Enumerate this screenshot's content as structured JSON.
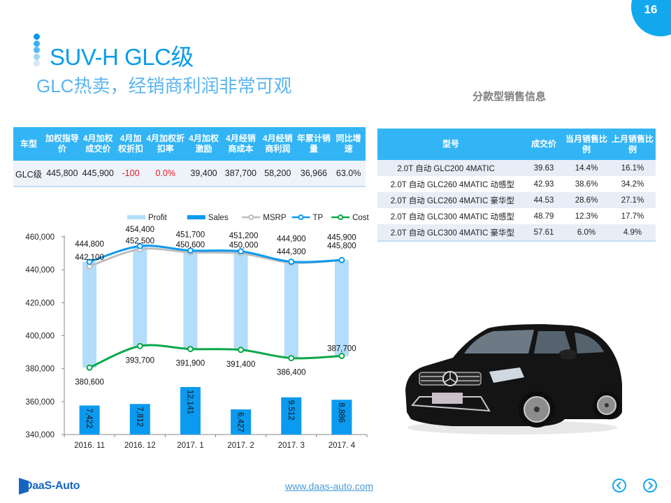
{
  "page": {
    "number": "16",
    "title": "SUV-H GLC级",
    "subtitle": "GLC热卖，经销商利润非常可观",
    "section_label": "分款型销售信息",
    "title_dots": [
      "#0A96E6",
      "#38AEF0",
      "#56BAF2",
      "#9ED6F8",
      "#D4E6F5"
    ]
  },
  "summary_table": {
    "headers": [
      "车型",
      "加权指导价",
      "4月加权成交价",
      "4月加权折扣",
      "4月加权折扣率",
      "4月加权激励",
      "4月经销商成本",
      "4月经销商利润",
      "年累计销量",
      "同比增速"
    ],
    "header_lines": [
      [
        "车型"
      ],
      [
        "加权指导",
        "价"
      ],
      [
        "4月加权",
        "成交价"
      ],
      [
        "4月加",
        "权折扣"
      ],
      [
        "4月加权折",
        "扣率"
      ],
      [
        "4月加权",
        "激励"
      ],
      [
        "4月经销",
        "商成本"
      ],
      [
        "4月经销",
        "商利润"
      ],
      [
        "年累计销",
        "量"
      ],
      [
        "同比增速"
      ]
    ],
    "row": [
      "GLC级",
      "445,800",
      "445,900",
      "-100",
      "0.0%",
      "39,400",
      "387,700",
      "58,200",
      "36,966",
      "63.0%"
    ],
    "negative_color": "#E5191C"
  },
  "variant_table": {
    "headers": [
      "型号",
      "成交价",
      "当月销售比例",
      "上月销售比例"
    ],
    "header_lines": [
      [
        "型号"
      ],
      [
        "成交价"
      ],
      [
        "当月销售比",
        "例"
      ],
      [
        "上月销售比",
        "例"
      ]
    ],
    "rows": [
      [
        "2.0T 自动 GLC200 4MATIC",
        "39.63",
        "14.4%",
        "16.1%"
      ],
      [
        "2.0T 自动 GLC260 4MATIC 动感型",
        "42.93",
        "38.6%",
        "34.2%"
      ],
      [
        "2.0T 自动 GLC260 4MATIC 豪华型",
        "44.53",
        "28.6%",
        "27.1%"
      ],
      [
        "2.0T 自动 GLC300 4MATIC 动感型",
        "48.79",
        "12.3%",
        "17.7%"
      ],
      [
        "2.0T 自动 GLC300 4MATIC 豪华型",
        "57.61",
        "6.0%",
        "4.9%"
      ]
    ]
  },
  "chart_data": {
    "type": "bar",
    "title": "",
    "xlabel": "",
    "ylabel": "",
    "categories": [
      "2016. 11",
      "2016. 12",
      "2017. 1",
      "2017. 2",
      "2017. 3",
      "2017. 4"
    ],
    "ylim": [
      340000,
      460000
    ],
    "yticks": [
      "460,000",
      "440,000",
      "420,000",
      "400,000",
      "380,000",
      "360,000",
      "340,000"
    ],
    "ytick_values": [
      460000,
      440000,
      420000,
      400000,
      380000,
      360000,
      340000
    ],
    "grid": false,
    "legend_position": "top",
    "legend": [
      {
        "name": "Profit",
        "kind": "bar",
        "color": "#B3DDFA"
      },
      {
        "name": "Sales",
        "kind": "bar",
        "color": "#0A9AF0"
      },
      {
        "name": "MSRP",
        "kind": "line",
        "color": "#BDBDBD"
      },
      {
        "name": "TP",
        "kind": "line",
        "color": "#0A9AF0"
      },
      {
        "name": "Cost",
        "kind": "line",
        "color": "#0BA84A"
      }
    ],
    "series": [
      {
        "name": "MSRP",
        "type": "line",
        "values": [
          442100,
          452500,
          450600,
          450000,
          444300,
          445800
        ],
        "labels": [
          "442,100",
          "452,500",
          "450,600",
          "450,000",
          "444,300",
          "445,800"
        ]
      },
      {
        "name": "TP",
        "type": "line",
        "values": [
          444800,
          454400,
          451700,
          451200,
          444900,
          445900
        ],
        "labels": [
          "444,800",
          "454,400",
          "451,700",
          "451,200",
          "444,900",
          "445,900"
        ]
      },
      {
        "name": "Cost",
        "type": "line",
        "values": [
          380600,
          393700,
          391900,
          391400,
          386400,
          387700
        ],
        "labels": [
          "380,600",
          "393,700",
          "391,900",
          "391,400",
          "386,400",
          "387,700"
        ]
      },
      {
        "name": "Profit",
        "type": "floating-bar",
        "from_series": "Cost",
        "to_series": "TP",
        "values": [
          64200,
          60700,
          59800,
          59800,
          58500,
          58200
        ]
      },
      {
        "name": "Sales",
        "type": "bar",
        "axis": "secondary",
        "values": [
          7422,
          7812,
          12141,
          6427,
          9512,
          8886
        ],
        "labels": [
          "7,422",
          "7,812",
          "12,141",
          "6,427",
          "9,512",
          "8,886"
        ]
      }
    ]
  },
  "footer": {
    "logo_text": "DaaS-Auto",
    "url": "www.daas-auto.com",
    "prev_icon": "chevron-left-circle-icon",
    "next_icon": "chevron-right-circle-icon"
  }
}
